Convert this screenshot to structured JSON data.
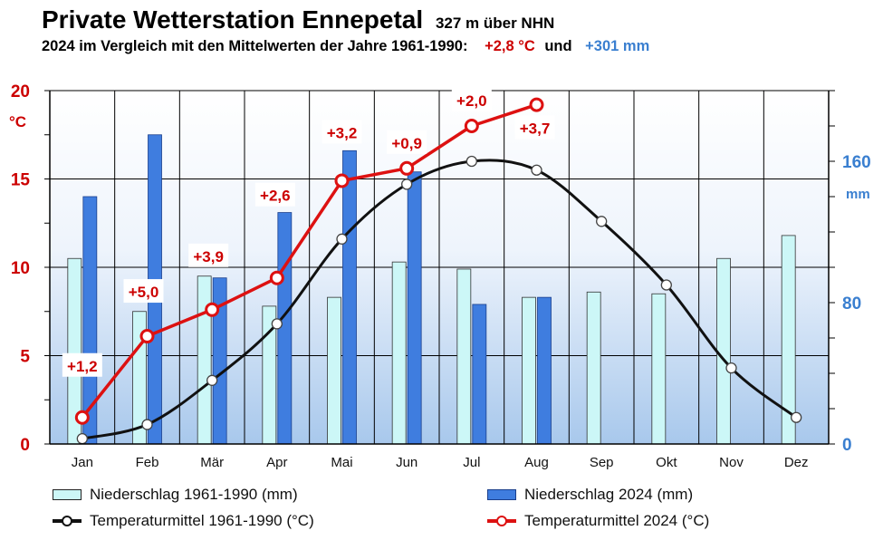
{
  "header": {
    "title": "Private Wetterstation Ennepetal",
    "elevation": "327 m über NHN",
    "subtitle_text": "2024 im Vergleich mit den Mittelwerten der Jahre 1961-1990:",
    "temp_delta": "+2,8 °C",
    "and_word": "und",
    "precip_delta": "+301 mm"
  },
  "legend": {
    "precip_normal": "Niederschlag 1961-1990 (mm)",
    "precip_2024": "Niederschlag 2024 (mm)",
    "temp_normal": "Temperaturmittel 1961-1990 (°C)",
    "temp_2024": "Temperaturmittel 2024 (°C)"
  },
  "chart_data": {
    "type": "bar+line",
    "categories": [
      "Jan",
      "Feb",
      "Mär",
      "Apr",
      "Mai",
      "Jun",
      "Jul",
      "Aug",
      "Sep",
      "Okt",
      "Nov",
      "Dez"
    ],
    "left_axis": {
      "unit_label": "°C",
      "range": [
        0,
        20
      ],
      "ticks": [
        "0",
        "5",
        "10",
        "15",
        "20"
      ]
    },
    "right_axis": {
      "unit_label": "mm",
      "range": [
        0,
        200
      ],
      "ticks": [
        "0",
        "80",
        "160"
      ],
      "tick_values": [
        0,
        80,
        160
      ]
    },
    "series": [
      {
        "name": "Niederschlag 1961-1990 (mm)",
        "kind": "bar",
        "axis": "right",
        "color": "#ccf7f7",
        "values": [
          105,
          75,
          95,
          78,
          83,
          103,
          99,
          83,
          86,
          85,
          105,
          118
        ]
      },
      {
        "name": "Niederschlag 2024 (mm)",
        "kind": "bar",
        "axis": "right",
        "color": "#3f7ddf",
        "values": [
          140,
          175,
          94,
          131,
          166,
          154,
          79,
          83,
          null,
          null,
          null,
          null
        ]
      },
      {
        "name": "Temperaturmittel 1961-1990 (°C)",
        "kind": "line",
        "axis": "left",
        "color": "#111111",
        "values": [
          0.3,
          1.1,
          3.6,
          6.8,
          11.6,
          14.7,
          16.0,
          15.5,
          12.6,
          9.0,
          4.3,
          1.5
        ]
      },
      {
        "name": "Temperaturmittel 2024 (°C)",
        "kind": "line",
        "axis": "left",
        "color": "#dd1111",
        "values": [
          1.5,
          6.1,
          7.6,
          9.4,
          14.9,
          15.6,
          18.0,
          19.2,
          null,
          null,
          null,
          null
        ]
      }
    ],
    "anomaly_labels": [
      "+1,2",
      "+5,0",
      "+3,9",
      "+2,6",
      "+3,2",
      "+0,9",
      "+2,0",
      "+3,7"
    ],
    "anomaly_label_color": "#cc0000"
  }
}
